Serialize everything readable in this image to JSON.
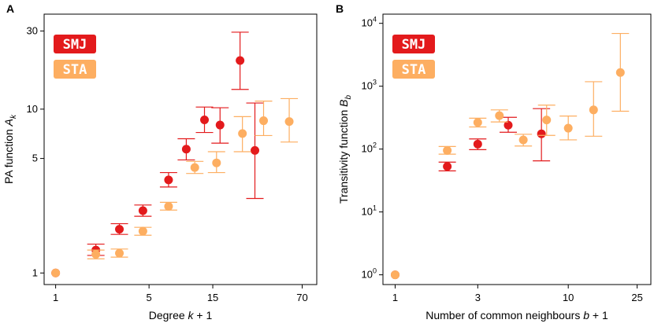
{
  "colors": {
    "SMJ": "#e31a1c",
    "STA": "#fdae61"
  },
  "chart_data": [
    {
      "type": "scatter",
      "panel": "A",
      "xscale": "log",
      "yscale": "log",
      "xlim": [
        0.82,
        90
      ],
      "ylim": [
        0.85,
        38
      ],
      "xticks": [
        1,
        5,
        15,
        70
      ],
      "yticks": [
        1,
        5,
        10,
        30
      ],
      "ytick_labels": [
        "1",
        "5",
        "10",
        "30"
      ],
      "xlabel": "Degree ",
      "xlabel_math": "k",
      "xlabel_suffix": " + 1",
      "ylabel": "PA function ",
      "ylabel_math": "A",
      "ylabel_sub": "k",
      "legend": [
        {
          "name": "SMJ",
          "label": "SMJ"
        },
        {
          "name": "STA",
          "label": "STA"
        }
      ],
      "series": [
        {
          "name": "SMJ",
          "points": [
            {
              "x": 1,
              "y": 1,
              "lo": 1,
              "hi": 1
            },
            {
              "x": 2,
              "y": 1.38,
              "lo": 1.28,
              "hi": 1.5
            },
            {
              "x": 3,
              "y": 1.85,
              "lo": 1.72,
              "hi": 2.0
            },
            {
              "x": 4.5,
              "y": 2.4,
              "lo": 2.22,
              "hi": 2.6
            },
            {
              "x": 7,
              "y": 3.7,
              "lo": 3.35,
              "hi": 4.1
            },
            {
              "x": 9.5,
              "y": 5.7,
              "lo": 4.9,
              "hi": 6.6
            },
            {
              "x": 13,
              "y": 8.6,
              "lo": 7.2,
              "hi": 10.3
            },
            {
              "x": 17,
              "y": 8.0,
              "lo": 6.2,
              "hi": 10.2
            },
            {
              "x": 24,
              "y": 19.8,
              "lo": 13.2,
              "hi": 29.5
            },
            {
              "x": 31,
              "y": 5.6,
              "lo": 2.85,
              "hi": 10.9
            }
          ]
        },
        {
          "name": "STA",
          "points": [
            {
              "x": 1,
              "y": 1,
              "lo": 1,
              "hi": 1
            },
            {
              "x": 2,
              "y": 1.3,
              "lo": 1.22,
              "hi": 1.38
            },
            {
              "x": 3,
              "y": 1.32,
              "lo": 1.25,
              "hi": 1.4
            },
            {
              "x": 4.5,
              "y": 1.8,
              "lo": 1.7,
              "hi": 1.9
            },
            {
              "x": 7,
              "y": 2.55,
              "lo": 2.42,
              "hi": 2.7
            },
            {
              "x": 11,
              "y": 4.4,
              "lo": 4.05,
              "hi": 4.8
            },
            {
              "x": 16,
              "y": 4.7,
              "lo": 4.1,
              "hi": 5.5
            },
            {
              "x": 25,
              "y": 7.1,
              "lo": 5.5,
              "hi": 9.0
            },
            {
              "x": 36,
              "y": 8.5,
              "lo": 6.9,
              "hi": 11.2
            },
            {
              "x": 56,
              "y": 8.4,
              "lo": 6.3,
              "hi": 11.6
            }
          ]
        }
      ]
    },
    {
      "type": "scatter",
      "panel": "B",
      "xscale": "log",
      "yscale": "log",
      "xlim": [
        0.85,
        30
      ],
      "ylim": [
        0.7,
        14000
      ],
      "xticks": [
        1,
        3,
        10,
        25
      ],
      "yticks": [
        1,
        10,
        100,
        1000,
        10000
      ],
      "ytick_labels": [
        "10^0",
        "10^1",
        "10^2",
        "10^3",
        "10^4"
      ],
      "xlabel": "Number of common neighbours ",
      "xlabel_math": "b",
      "xlabel_suffix": " + 1",
      "ylabel": "Transitivity function ",
      "ylabel_math": "B",
      "ylabel_sub": "b",
      "legend": [
        {
          "name": "SMJ",
          "label": "SMJ"
        },
        {
          "name": "STA",
          "label": "STA"
        }
      ],
      "series": [
        {
          "name": "SMJ",
          "points": [
            {
              "x": 1,
              "y": 1,
              "lo": 1,
              "hi": 1
            },
            {
              "x": 2,
              "y": 53,
              "lo": 45,
              "hi": 62
            },
            {
              "x": 3,
              "y": 120,
              "lo": 98,
              "hi": 145
            },
            {
              "x": 4.5,
              "y": 240,
              "lo": 185,
              "hi": 320
            },
            {
              "x": 7,
              "y": 175,
              "lo": 65,
              "hi": 440
            }
          ]
        },
        {
          "name": "STA",
          "points": [
            {
              "x": 1,
              "y": 1,
              "lo": 1,
              "hi": 1
            },
            {
              "x": 2,
              "y": 95,
              "lo": 83,
              "hi": 110
            },
            {
              "x": 3,
              "y": 265,
              "lo": 225,
              "hi": 310
            },
            {
              "x": 4,
              "y": 340,
              "lo": 270,
              "hi": 420
            },
            {
              "x": 5.5,
              "y": 140,
              "lo": 112,
              "hi": 172
            },
            {
              "x": 7.5,
              "y": 290,
              "lo": 165,
              "hi": 500
            },
            {
              "x": 10,
              "y": 215,
              "lo": 140,
              "hi": 335
            },
            {
              "x": 14,
              "y": 420,
              "lo": 160,
              "hi": 1180
            },
            {
              "x": 20,
              "y": 1650,
              "lo": 400,
              "hi": 6900
            }
          ]
        }
      ]
    }
  ]
}
